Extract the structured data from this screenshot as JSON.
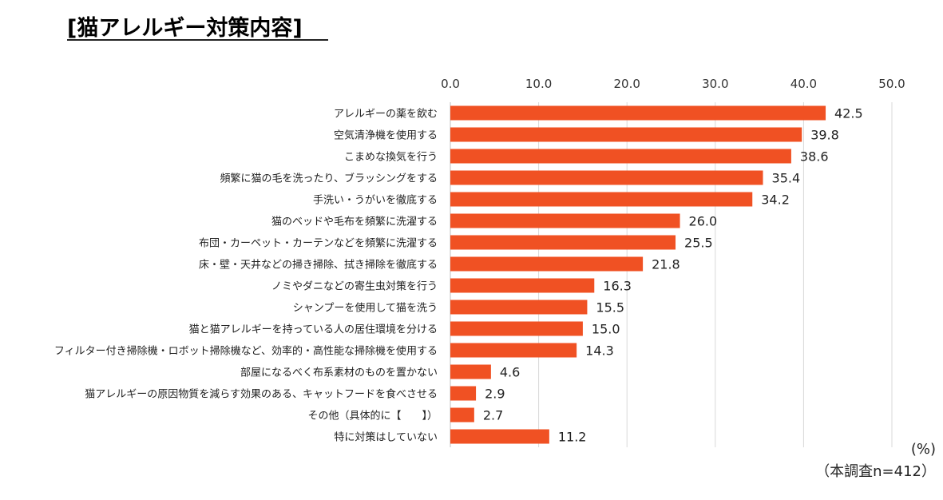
{
  "chart_data": {
    "type": "bar",
    "orientation": "horizontal",
    "title": "[猫アレルギー対策内容]",
    "categories": [
      "アレルギーの薬を飲む",
      "空気清浄機を使用する",
      "こまめな換気を行う",
      "頻繁に猫の毛を洗ったり、ブラッシングをする",
      "手洗い・うがいを徹底する",
      "猫のベッドや毛布を頻繁に洗濯する",
      "布団・カーペット・カーテンなどを頻繁に洗濯する",
      "床・壁・天井などの掃き掃除、拭き掃除を徹底する",
      "ノミやダニなどの寄生虫対策を行う",
      "シャンプーを使用して猫を洗う",
      "猫と猫アレルギーを持っている人の居住環境を分ける",
      "フィルター付き掃除機・ロボット掃除機など、効率的・高性能な掃除機を使用する",
      "部屋になるべく布系素材のものを置かない",
      "猫アレルギーの原因物質を減らす効果のある、キャットフードを食べさせる",
      "その他（具体的に【　　】）",
      "特に対策はしていない"
    ],
    "values": [
      42.5,
      39.8,
      38.6,
      35.4,
      34.2,
      26.0,
      25.5,
      21.8,
      16.3,
      15.5,
      15.0,
      14.3,
      4.6,
      2.9,
      2.7,
      11.2
    ],
    "value_labels": [
      "42.5",
      "39.8",
      "38.6",
      "35.4",
      "34.2",
      "26.0",
      "25.5",
      "21.8",
      "16.3",
      "15.5",
      "15.0",
      "14.3",
      "4.6",
      "2.9",
      "2.7",
      "11.2"
    ],
    "x_ticks": [
      "0.0",
      "10.0",
      "20.0",
      "30.0",
      "40.0",
      "50.0"
    ],
    "xlim": [
      0,
      50
    ],
    "axis_position": "top",
    "gridlines": true,
    "unit_label": "(%)",
    "sample_note": "（本調査n=412）",
    "bar_color": "#f05123",
    "grid_color": "#d9d9d9"
  }
}
